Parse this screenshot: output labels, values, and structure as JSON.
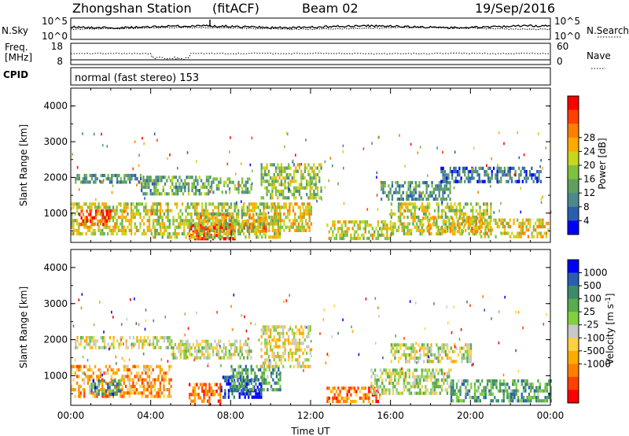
{
  "header": {
    "station": "Zhongshan Station",
    "mode": "(fitACF)",
    "beam": "Beam 02",
    "date": "19/Sep/2016"
  },
  "nsky_panel": {
    "left_label": "N.Sky",
    "right_label": "N.Search",
    "left_ticks": [
      "10^5",
      "10^0"
    ],
    "right_ticks": [
      "10^5",
      "10^0"
    ]
  },
  "freq_panel": {
    "left_label_1": "Freq.",
    "left_label_2": "[MHz]",
    "right_label": "Nave",
    "left_ticks": [
      "18",
      "8"
    ],
    "right_ticks": [
      "60",
      "0"
    ]
  },
  "cpid_panel": {
    "label": "CPID",
    "text": "normal (fast stereo) 153"
  },
  "chart_data": [
    {
      "type": "heatmap",
      "name": "power",
      "ylabel": "Slant Range [km]",
      "ylim": [
        180,
        4500
      ],
      "yticks": [
        "1000",
        "2000",
        "3000",
        "4000"
      ],
      "xlim": [
        "00:00",
        "24:00"
      ],
      "colorbar": {
        "label": "Power [dB]",
        "ticks": [
          "4",
          "8",
          "12",
          "16",
          "20",
          "24",
          "28"
        ],
        "colors": [
          "#0000ff",
          "#2a5fb0",
          "#4a8a8f",
          "#5fa05f",
          "#7fc03f",
          "#c8d61e",
          "#ffaa00",
          "#ff7f00",
          "#ff4000",
          "#ff0000"
        ]
      },
      "regions": [
        {
          "t0": 0.0,
          "t1": 4.5,
          "r0": 400,
          "r1": 1300,
          "v": 0.55
        },
        {
          "t0": 0.4,
          "t1": 2.0,
          "r0": 700,
          "r1": 1100,
          "v": 0.85
        },
        {
          "t0": 0.2,
          "t1": 3.5,
          "r0": 1850,
          "r1": 2100,
          "v": 0.3
        },
        {
          "t0": 3.5,
          "t1": 7.0,
          "r0": 1550,
          "r1": 2050,
          "v": 0.35
        },
        {
          "t0": 5.9,
          "t1": 8.2,
          "r0": 250,
          "r1": 700,
          "v": 0.95
        },
        {
          "t0": 6.2,
          "t1": 9.8,
          "r0": 500,
          "r1": 1000,
          "v": 0.75
        },
        {
          "t0": 4.0,
          "t1": 10.5,
          "r0": 300,
          "r1": 1300,
          "v": 0.5
        },
        {
          "t0": 7.0,
          "t1": 9.0,
          "r0": 1600,
          "r1": 2000,
          "v": 0.4
        },
        {
          "t0": 9.5,
          "t1": 12.5,
          "r0": 1400,
          "r1": 2400,
          "v": 0.45
        },
        {
          "t0": 10.0,
          "t1": 12.0,
          "r0": 500,
          "r1": 1300,
          "v": 0.6
        },
        {
          "t0": 12.8,
          "t1": 16.0,
          "r0": 250,
          "r1": 800,
          "v": 0.55
        },
        {
          "t0": 16.0,
          "t1": 21.0,
          "r0": 400,
          "r1": 1300,
          "v": 0.5
        },
        {
          "t0": 17.5,
          "t1": 20.5,
          "r0": 500,
          "r1": 900,
          "v": 0.65
        },
        {
          "t0": 20.5,
          "t1": 23.9,
          "r0": 350,
          "r1": 850,
          "v": 0.6
        },
        {
          "t0": 15.5,
          "t1": 19.0,
          "r0": 1400,
          "r1": 1900,
          "v": 0.3
        },
        {
          "t0": 18.5,
          "t1": 23.5,
          "r0": 1900,
          "r1": 2300,
          "v": 0.2
        }
      ]
    },
    {
      "type": "heatmap",
      "name": "velocity",
      "ylabel": "Slant Range [km]",
      "ylim": [
        180,
        4500
      ],
      "yticks": [
        "1000",
        "2000",
        "3000",
        "4000"
      ],
      "xlabel": "Time UT",
      "xticks": [
        "00:00",
        "04:00",
        "08:00",
        "12:00",
        "16:00",
        "20:00",
        "00:00"
      ],
      "xlim": [
        "00:00",
        "24:00"
      ],
      "colorbar": {
        "label": "Velocity [m s^-1]",
        "ticks": [
          "1000",
          "500",
          "100",
          "25",
          "-25",
          "-100",
          "-500",
          "-1000"
        ],
        "colors": [
          "#0000ff",
          "#2a5fb0",
          "#3c8c6a",
          "#5aaa50",
          "#80d040",
          "#c8c8c8",
          "#ffd040",
          "#ffaa00",
          "#ff7f00",
          "#ff4000",
          "#ff0000"
        ]
      },
      "regions": [
        {
          "t0": 0.0,
          "t1": 5.0,
          "r0": 400,
          "r1": 1300,
          "v": 0.7
        },
        {
          "t0": 1.0,
          "t1": 2.5,
          "r0": 500,
          "r1": 900,
          "v": 0.25
        },
        {
          "t0": 0.2,
          "t1": 5.0,
          "r0": 1800,
          "r1": 2100,
          "v": 0.5
        },
        {
          "t0": 5.0,
          "t1": 9.0,
          "r0": 1500,
          "r1": 2000,
          "v": 0.5
        },
        {
          "t0": 5.9,
          "t1": 7.5,
          "r0": 250,
          "r1": 800,
          "v": 0.8
        },
        {
          "t0": 7.5,
          "t1": 9.5,
          "r0": 400,
          "r1": 1000,
          "v": 0.08
        },
        {
          "t0": 8.0,
          "t1": 10.5,
          "r0": 600,
          "r1": 1300,
          "v": 0.3
        },
        {
          "t0": 9.5,
          "t1": 12.0,
          "r0": 1300,
          "r1": 2400,
          "v": 0.55
        },
        {
          "t0": 12.8,
          "t1": 15.5,
          "r0": 250,
          "r1": 700,
          "v": 0.78
        },
        {
          "t0": 15.0,
          "t1": 19.0,
          "r0": 500,
          "r1": 1200,
          "v": 0.45
        },
        {
          "t0": 19.0,
          "t1": 24.0,
          "r0": 300,
          "r1": 900,
          "v": 0.3
        },
        {
          "t0": 16.0,
          "t1": 20.0,
          "r0": 1400,
          "r1": 1900,
          "v": 0.5
        }
      ]
    }
  ],
  "legend": {
    "nsearch_line": "dotted",
    "nave_line": "dotted"
  }
}
